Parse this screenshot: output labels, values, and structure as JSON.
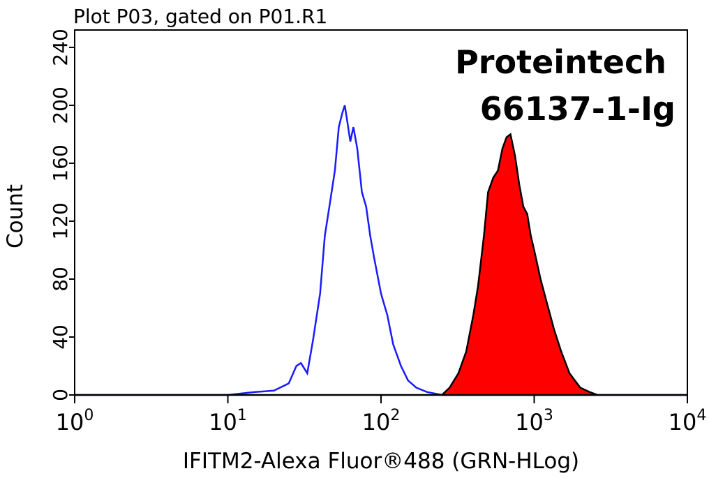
{
  "chart_data": {
    "type": "histogram-overlay",
    "title": "Plot P03, gated on P01.R1",
    "x_label": "IFITM2-Alexa Fluor®488 (GRN-HLog)",
    "y_label": "Count",
    "annotations": [
      "Proteintech",
      "66137-1-Ig"
    ],
    "x_scale": "log",
    "xlim": [
      1,
      10000
    ],
    "xticks": [
      {
        "value": 1,
        "label": "10",
        "exponent": "0"
      },
      {
        "value": 10,
        "label": "10",
        "exponent": "1"
      },
      {
        "value": 100,
        "label": "10",
        "exponent": "2"
      },
      {
        "value": 1000,
        "label": "10",
        "exponent": "3"
      },
      {
        "value": 10000,
        "label": "10",
        "exponent": "4"
      }
    ],
    "ylim": [
      0,
      252
    ],
    "yticks": [
      0,
      40,
      80,
      120,
      160,
      200,
      240
    ],
    "series": [
      {
        "color": "#1a1aff",
        "fill": false,
        "x": [
          1,
          10,
          15,
          20,
          25,
          28,
          30,
          33,
          36,
          40,
          43,
          46,
          50,
          53,
          56,
          58,
          60,
          63,
          66,
          70,
          75,
          80,
          85,
          90,
          100,
          110,
          120,
          135,
          150,
          170,
          200,
          250,
          10000
        ],
        "values": [
          0,
          0,
          2,
          3,
          8,
          20,
          22,
          15,
          38,
          70,
          110,
          130,
          155,
          185,
          195,
          200,
          190,
          175,
          185,
          170,
          140,
          130,
          110,
          95,
          70,
          55,
          35,
          20,
          10,
          5,
          2,
          0,
          0
        ]
      },
      {
        "color": "#ff0000",
        "fill": true,
        "x": [
          1,
          250,
          280,
          320,
          360,
          400,
          430,
          470,
          500,
          540,
          580,
          620,
          660,
          700,
          750,
          800,
          850,
          900,
          950,
          1000,
          1100,
          1200,
          1350,
          1500,
          1700,
          2000,
          2300,
          2600,
          10000
        ],
        "values": [
          0,
          0,
          5,
          15,
          30,
          55,
          75,
          110,
          140,
          150,
          155,
          170,
          178,
          180,
          165,
          145,
          130,
          125,
          110,
          100,
          80,
          65,
          45,
          30,
          15,
          5,
          2,
          0,
          0
        ]
      }
    ]
  }
}
